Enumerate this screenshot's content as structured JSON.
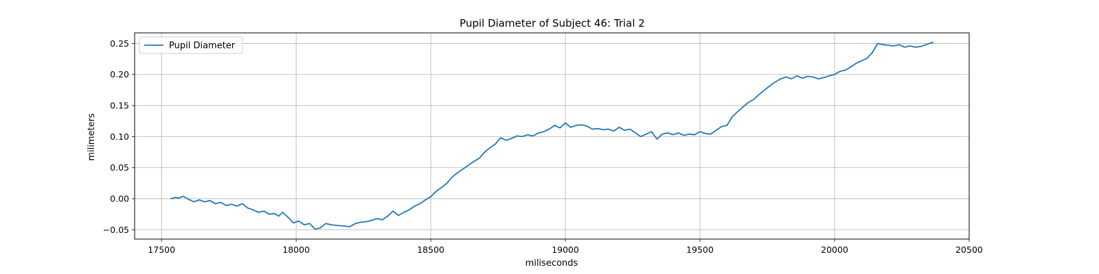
{
  "chart_data": {
    "type": "line",
    "title": "Pupil Diameter of Subject 46: Trial 2",
    "xlabel": "miliseconds",
    "ylabel": "milimeters",
    "xlim": [
      17400,
      20500
    ],
    "ylim": [
      -0.065,
      0.267
    ],
    "xticks": [
      17500,
      18000,
      18500,
      19000,
      19500,
      20000,
      20500
    ],
    "xtick_labels": [
      "17500",
      "18000",
      "18500",
      "19000",
      "19500",
      "20000",
      "20500"
    ],
    "yticks": [
      -0.05,
      0.0,
      0.05,
      0.1,
      0.15,
      0.2,
      0.25
    ],
    "ytick_labels": [
      "−0.05",
      "0.00",
      "0.05",
      "0.10",
      "0.15",
      "0.20",
      "0.25"
    ],
    "grid": true,
    "legend": {
      "position": "top-left",
      "entries": [
        "Pupil Diameter"
      ]
    },
    "series": [
      {
        "name": "Pupil Diameter",
        "color": "#1f77b4",
        "x": [
          17535,
          17550,
          17565,
          17580,
          17600,
          17620,
          17640,
          17660,
          17680,
          17700,
          17720,
          17740,
          17760,
          17780,
          17800,
          17820,
          17840,
          17860,
          17880,
          17900,
          17920,
          17935,
          17950,
          17970,
          17990,
          18010,
          18030,
          18050,
          18070,
          18090,
          18110,
          18130,
          18150,
          18180,
          18200,
          18220,
          18240,
          18260,
          18280,
          18300,
          18320,
          18340,
          18360,
          18380,
          18400,
          18420,
          18440,
          18460,
          18480,
          18500,
          18520,
          18540,
          18560,
          18580,
          18600,
          18620,
          18640,
          18660,
          18680,
          18700,
          18720,
          18740,
          18760,
          18780,
          18800,
          18820,
          18840,
          18860,
          18880,
          18900,
          18920,
          18940,
          18960,
          18980,
          19000,
          19020,
          19040,
          19060,
          19080,
          19100,
          19120,
          19140,
          19160,
          19180,
          19200,
          19220,
          19240,
          19260,
          19280,
          19300,
          19320,
          19340,
          19360,
          19380,
          19400,
          19420,
          19440,
          19460,
          19480,
          19500,
          19520,
          19540,
          19560,
          19580,
          19600,
          19620,
          19640,
          19660,
          19680,
          19700,
          19720,
          19740,
          19760,
          19780,
          19800,
          19820,
          19840,
          19860,
          19880,
          19900,
          19920,
          19940,
          19960,
          19980,
          20000,
          20020,
          20040,
          20060,
          20080,
          20100,
          20120,
          20140,
          20160,
          20180,
          20200,
          20220,
          20240,
          20260,
          20280,
          20300,
          20320,
          20340,
          20365
        ],
        "values": [
          0.0,
          0.002,
          0.001,
          0.004,
          -0.001,
          -0.005,
          -0.002,
          -0.005,
          -0.003,
          -0.008,
          -0.006,
          -0.011,
          -0.009,
          -0.012,
          -0.008,
          -0.015,
          -0.018,
          -0.022,
          -0.02,
          -0.025,
          -0.024,
          -0.028,
          -0.022,
          -0.03,
          -0.039,
          -0.036,
          -0.042,
          -0.04,
          -0.049,
          -0.047,
          -0.04,
          -0.042,
          -0.043,
          -0.044,
          -0.045,
          -0.04,
          -0.038,
          -0.037,
          -0.035,
          -0.032,
          -0.034,
          -0.028,
          -0.02,
          -0.027,
          -0.022,
          -0.018,
          -0.012,
          -0.008,
          -0.002,
          0.003,
          0.012,
          0.018,
          0.025,
          0.035,
          0.042,
          0.048,
          0.054,
          0.06,
          0.065,
          0.075,
          0.082,
          0.088,
          0.098,
          0.094,
          0.097,
          0.101,
          0.1,
          0.103,
          0.101,
          0.106,
          0.108,
          0.112,
          0.118,
          0.114,
          0.122,
          0.115,
          0.118,
          0.119,
          0.117,
          0.112,
          0.113,
          0.111,
          0.112,
          0.109,
          0.115,
          0.11,
          0.112,
          0.106,
          0.1,
          0.104,
          0.108,
          0.096,
          0.104,
          0.106,
          0.103,
          0.106,
          0.102,
          0.104,
          0.103,
          0.108,
          0.105,
          0.104,
          0.11,
          0.116,
          0.118,
          0.132,
          0.14,
          0.148,
          0.155,
          0.16,
          0.168,
          0.175,
          0.182,
          0.188,
          0.193,
          0.196,
          0.193,
          0.198,
          0.194,
          0.197,
          0.196,
          0.193,
          0.195,
          0.198,
          0.2,
          0.205,
          0.207,
          0.212,
          0.218,
          0.222,
          0.226,
          0.235,
          0.25,
          0.248,
          0.247,
          0.246,
          0.248,
          0.244,
          0.246,
          0.244,
          0.245,
          0.248,
          0.252
        ]
      }
    ]
  }
}
